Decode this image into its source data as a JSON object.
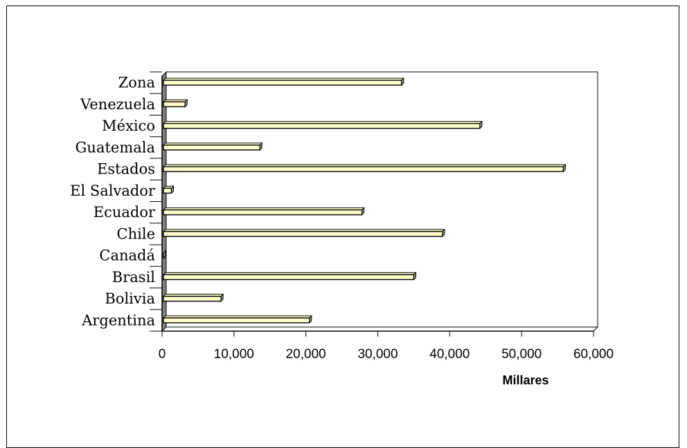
{
  "chart_data": {
    "type": "bar",
    "orientation": "horizontal",
    "style": "3d",
    "categories": [
      "Argentina",
      "Bolivia",
      "Brasil",
      "Canadá",
      "Chile",
      "Ecuador",
      "El Salvador",
      "Estados",
      "Guatemala",
      "México",
      "Venezuela",
      "Zona"
    ],
    "values": [
      20500,
      8200,
      35000,
      200,
      39000,
      27800,
      1300,
      55800,
      13600,
      44200,
      3200,
      33300
    ],
    "xlabel": "Millares",
    "ylabel": "",
    "xlim": [
      0,
      60000
    ],
    "xticks": [
      0,
      10000,
      20000,
      30000,
      40000,
      50000,
      60000
    ],
    "xtick_labels": [
      "0",
      "10,000",
      "20,000",
      "30,000",
      "40,000",
      "50,000",
      "60,000"
    ],
    "grid": false,
    "legend": "none",
    "colors": {
      "bar_face": "#FFFFCC",
      "bar_edge": "#000000",
      "bar_side": "#999999",
      "wall_side": "#808080"
    }
  }
}
